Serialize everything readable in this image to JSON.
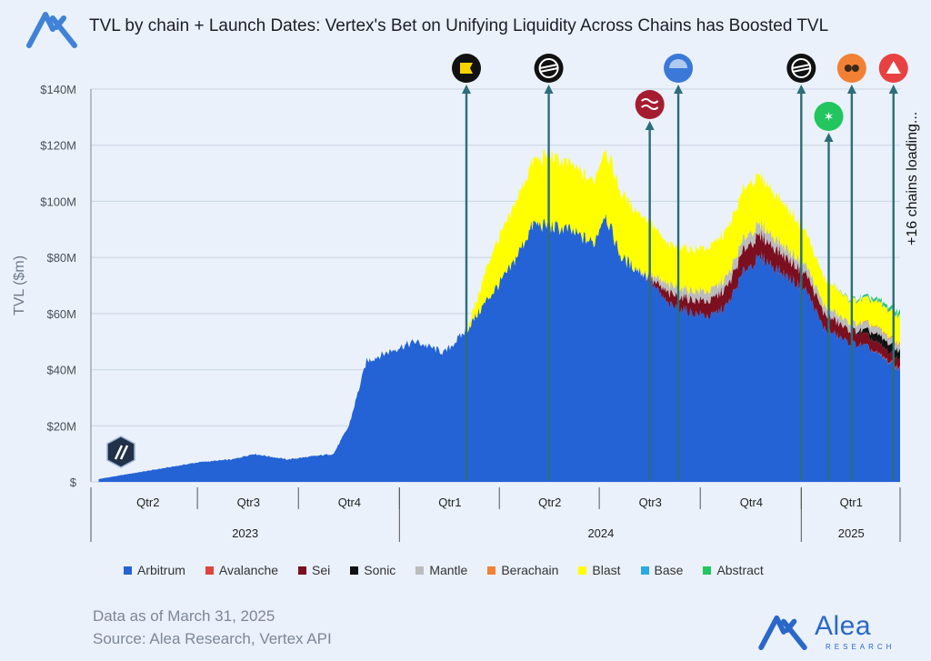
{
  "title": "TVL by chain + Launch Dates: Vertex's Bet on Unifying Liquidity Across Chains has Boosted TVL",
  "footer": {
    "data_as_of": "Data as of March 31, 2025",
    "source": "Source: Alea Research, Vertex API"
  },
  "brand": {
    "name": "Alea",
    "sub": "RESEARCH"
  },
  "annotation": "+16 chains loading...",
  "colors": {
    "background": "#eaf1fa",
    "arrow": "#2c6e79",
    "accent": "#2a67c9"
  },
  "chart_data": {
    "type": "area",
    "ylabel": "TVL ($m)",
    "yticks": [
      "$",
      "$20M",
      "$40M",
      "$60M",
      "$80M",
      "$100M",
      "$120M",
      "$140M"
    ],
    "ylim": [
      0,
      140
    ],
    "x_quarters": [
      {
        "label": "Qtr2",
        "start": "2023-04-01",
        "end": "2023-06-30"
      },
      {
        "label": "Qtr3",
        "start": "2023-07-01",
        "end": "2023-09-30"
      },
      {
        "label": "Qtr4",
        "start": "2023-10-01",
        "end": "2023-12-31"
      },
      {
        "label": "Qtr1",
        "start": "2024-01-01",
        "end": "2024-03-31"
      },
      {
        "label": "Qtr2",
        "start": "2024-04-01",
        "end": "2024-06-30"
      },
      {
        "label": "Qtr3",
        "start": "2024-07-01",
        "end": "2024-09-30"
      },
      {
        "label": "Qtr4",
        "start": "2024-10-01",
        "end": "2024-12-31"
      },
      {
        "label": "Qtr1",
        "start": "2025-01-01",
        "end": "2025-03-31"
      }
    ],
    "x_years": [
      "2023",
      "2024",
      "2025"
    ],
    "legend_position": "bottom",
    "grid": true,
    "series": [
      {
        "name": "Arbitrum",
        "color": "#2463d6",
        "points": [
          [
            "2023-04-01",
            1
          ],
          [
            "2023-05-01",
            3
          ],
          [
            "2023-06-01",
            5
          ],
          [
            "2023-07-01",
            7
          ],
          [
            "2023-08-01",
            8
          ],
          [
            "2023-08-20",
            10
          ],
          [
            "2023-09-20",
            8
          ],
          [
            "2023-11-01",
            10
          ],
          [
            "2023-11-15",
            20
          ],
          [
            "2023-12-01",
            43
          ],
          [
            "2023-12-31",
            48
          ],
          [
            "2024-01-15",
            50
          ],
          [
            "2024-02-10",
            46
          ],
          [
            "2024-03-01",
            54
          ],
          [
            "2024-03-20",
            65
          ],
          [
            "2024-04-10",
            76
          ],
          [
            "2024-05-01",
            92
          ],
          [
            "2024-06-01",
            90
          ],
          [
            "2024-06-25",
            85
          ],
          [
            "2024-07-05",
            96
          ],
          [
            "2024-07-20",
            80
          ],
          [
            "2024-08-10",
            74
          ],
          [
            "2024-09-01",
            63
          ],
          [
            "2024-09-25",
            60
          ],
          [
            "2024-10-10",
            59
          ],
          [
            "2024-10-25",
            63
          ],
          [
            "2024-11-10",
            76
          ],
          [
            "2024-11-25",
            80
          ],
          [
            "2024-12-15",
            74
          ],
          [
            "2025-01-05",
            68
          ],
          [
            "2025-01-20",
            55
          ],
          [
            "2025-02-10",
            50
          ],
          [
            "2025-03-01",
            48
          ],
          [
            "2025-03-31",
            40
          ]
        ]
      },
      {
        "name": "Avalanche",
        "color": "#e0443e",
        "points": [
          [
            "2025-03-01",
            0
          ],
          [
            "2025-03-31",
            0.5
          ]
        ]
      },
      {
        "name": "Sei",
        "color": "#7b0f1f",
        "points": [
          [
            "2024-08-10",
            0
          ],
          [
            "2024-09-01",
            4
          ],
          [
            "2024-10-01",
            5
          ],
          [
            "2024-11-15",
            8
          ],
          [
            "2025-01-01",
            6
          ],
          [
            "2025-03-31",
            3
          ]
        ]
      },
      {
        "name": "Sonic",
        "color": "#111111",
        "points": [
          [
            "2025-02-15",
            0
          ],
          [
            "2025-03-10",
            3
          ],
          [
            "2025-03-31",
            3
          ]
        ]
      },
      {
        "name": "Mantle",
        "color": "#bcbcbc",
        "points": [
          [
            "2024-08-01",
            0
          ],
          [
            "2024-09-01",
            3
          ],
          [
            "2024-11-15",
            4
          ],
          [
            "2025-01-15",
            3
          ],
          [
            "2025-03-31",
            2
          ]
        ]
      },
      {
        "name": "Berachain",
        "color": "#f28035",
        "points": [
          [
            "2025-02-05",
            0
          ],
          [
            "2025-03-31",
            0.5
          ]
        ]
      },
      {
        "name": "Blast",
        "color": "#ffff00",
        "points": [
          [
            "2024-03-01",
            0
          ],
          [
            "2024-03-10",
            5
          ],
          [
            "2024-03-25",
            15
          ],
          [
            "2024-04-15",
            20
          ],
          [
            "2024-05-15",
            25
          ],
          [
            "2024-06-25",
            22
          ],
          [
            "2024-07-10",
            24
          ],
          [
            "2024-08-10",
            20
          ],
          [
            "2024-09-01",
            14
          ],
          [
            "2024-10-01",
            15
          ],
          [
            "2024-11-15",
            18
          ],
          [
            "2024-12-15",
            15
          ],
          [
            "2025-01-15",
            10
          ],
          [
            "2025-02-15",
            8
          ],
          [
            "2025-03-31",
            10
          ]
        ]
      },
      {
        "name": "Base",
        "color": "#29abe2",
        "points": [
          [
            "2025-01-20",
            0
          ],
          [
            "2025-03-31",
            0.5
          ]
        ]
      },
      {
        "name": "Abstract",
        "color": "#22c55e",
        "points": [
          [
            "2025-02-01",
            0
          ],
          [
            "2025-03-31",
            1
          ]
        ]
      }
    ],
    "launch_markers": [
      {
        "chain": "Blast",
        "date": "2024-03-01",
        "icon": "blast-icon",
        "color": "#111111",
        "accent": "#f5d400"
      },
      {
        "chain": "Mantle",
        "date": "2024-05-15",
        "icon": "mantle-icon",
        "color": "#111111",
        "accent": "#ffffff"
      },
      {
        "chain": "Sei",
        "date": "2024-08-15",
        "icon": "sei-icon",
        "color": "#a51c30",
        "accent": "#ffffff"
      },
      {
        "chain": "Base",
        "date": "2024-09-10",
        "icon": "base-icon",
        "color": "#3a79d8",
        "accent": "#ffffff"
      },
      {
        "chain": "Sonic",
        "date": "2024-12-31",
        "icon": "sonic-icon",
        "color": "#111111",
        "accent": "#ffffff"
      },
      {
        "chain": "Abstract",
        "date": "2025-01-25",
        "icon": "abstract-icon",
        "color": "#22c55e",
        "accent": "#ffffff"
      },
      {
        "chain": "Berachain",
        "date": "2025-02-15",
        "icon": "berachain-icon",
        "color": "#f28035",
        "accent": "#3b2a1a"
      },
      {
        "chain": "Avalanche",
        "date": "2025-03-25",
        "icon": "avalanche-icon",
        "color": "#e84142",
        "accent": "#ffffff"
      }
    ],
    "start_marker": {
      "chain": "Arbitrum",
      "icon": "arbitrum-icon",
      "date": "2023-04-01"
    }
  }
}
